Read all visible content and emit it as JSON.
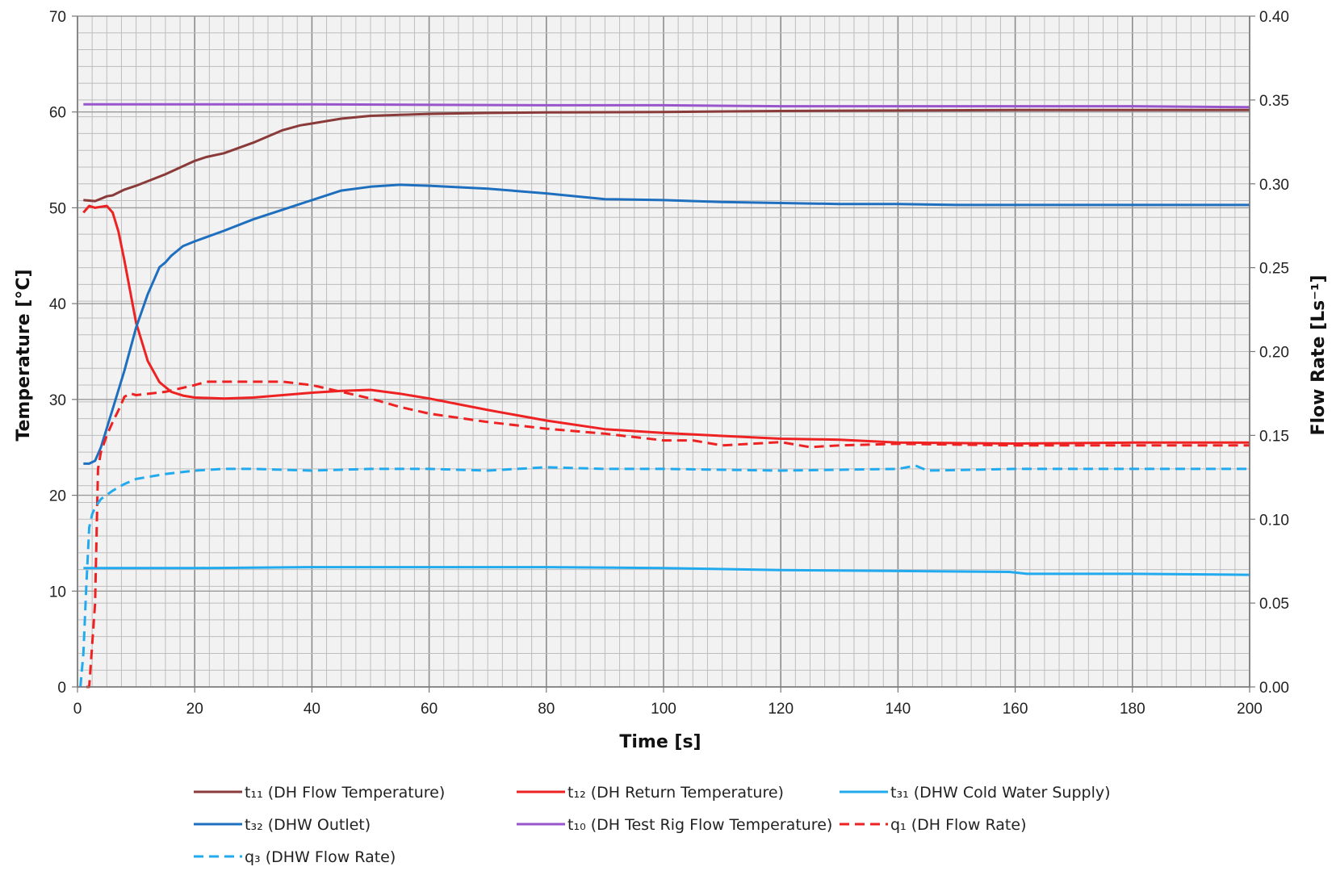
{
  "chart_data": {
    "type": "line",
    "xlabel": "Time [s]",
    "ylabel_left": "Temperature [°C]",
    "ylabel_right": "Flow Rate [Ls⁻¹]",
    "xlim": [
      0,
      200
    ],
    "ylim_left": [
      0,
      70
    ],
    "ylim_right": [
      0,
      0.4
    ],
    "x_ticks": [
      "0",
      "20",
      "40",
      "60",
      "80",
      "100",
      "120",
      "140",
      "160",
      "180",
      "200"
    ],
    "y_left_ticks": [
      "0",
      "10",
      "20",
      "30",
      "40",
      "50",
      "60",
      "70"
    ],
    "y_right_ticks": [
      "0.00",
      "0.05",
      "0.10",
      "0.15",
      "0.20",
      "0.25",
      "0.30",
      "0.35",
      "0.40"
    ],
    "grid": true,
    "plot_background": "#f2f2f2",
    "legend_position": "bottom",
    "series": [
      {
        "name": "t₁₁ (DH Flow Temperature)",
        "axis": "left",
        "color": "#8b3a3a",
        "dash": "solid",
        "x": [
          1,
          3,
          5,
          6,
          8,
          10,
          15,
          20,
          22,
          25,
          30,
          35,
          38,
          40,
          45,
          50,
          55,
          60,
          70,
          80,
          100,
          120,
          140,
          160,
          180,
          200
        ],
        "y": [
          50.8,
          50.7,
          51.2,
          51.3,
          51.9,
          52.3,
          53.5,
          54.9,
          55.3,
          55.7,
          56.8,
          58.1,
          58.6,
          58.8,
          59.3,
          59.6,
          59.7,
          59.8,
          59.9,
          59.95,
          60.0,
          60.1,
          60.15,
          60.2,
          60.2,
          60.2
        ]
      },
      {
        "name": "t₁₂ (DH Return Temperature)",
        "axis": "left",
        "color": "#ee2222",
        "dash": "solid",
        "x": [
          1,
          2,
          3,
          4,
          5,
          6,
          7,
          8,
          10,
          12,
          14,
          16,
          18,
          20,
          25,
          30,
          40,
          45,
          50,
          55,
          60,
          70,
          80,
          90,
          100,
          110,
          120,
          130,
          140,
          160,
          180,
          200
        ],
        "y": [
          49.5,
          50.2,
          50.0,
          50.1,
          50.2,
          49.5,
          47.5,
          44.5,
          38.0,
          34.0,
          31.8,
          30.8,
          30.4,
          30.2,
          30.1,
          30.2,
          30.7,
          30.9,
          31.0,
          30.6,
          30.1,
          28.9,
          27.8,
          26.9,
          26.5,
          26.2,
          25.9,
          25.8,
          25.5,
          25.4,
          25.5,
          25.5
        ]
      },
      {
        "name": "t₃₁ (DHW Cold Water Supply)",
        "axis": "left",
        "color": "#22aaee",
        "dash": "solid",
        "x": [
          1,
          20,
          40,
          60,
          80,
          100,
          120,
          140,
          159,
          162,
          180,
          200
        ],
        "y": [
          12.4,
          12.4,
          12.5,
          12.5,
          12.5,
          12.4,
          12.2,
          12.1,
          12.0,
          11.8,
          11.8,
          11.7
        ]
      },
      {
        "name": "t₃₂ (DHW Outlet)",
        "axis": "left",
        "color": "#1f6fbf",
        "dash": "solid",
        "x": [
          1,
          2,
          3,
          4,
          6,
          8,
          10,
          12,
          14,
          15,
          16,
          18,
          20,
          25,
          30,
          32,
          35,
          40,
          45,
          50,
          55,
          60,
          70,
          80,
          90,
          100,
          110,
          120,
          130,
          140,
          150,
          160,
          180,
          200
        ],
        "y": [
          23.3,
          23.3,
          23.6,
          25.0,
          29.0,
          33.0,
          37.5,
          41.0,
          43.8,
          44.3,
          45.0,
          46.0,
          46.5,
          47.6,
          48.8,
          49.2,
          49.8,
          50.8,
          51.8,
          52.2,
          52.4,
          52.3,
          52.0,
          51.5,
          50.9,
          50.8,
          50.6,
          50.5,
          50.4,
          50.4,
          50.3,
          50.3,
          50.3,
          50.3
        ]
      },
      {
        "name": "t₁₀ (DH Test Rig Flow Temperature)",
        "axis": "left",
        "color": "#9955cc",
        "dash": "solid",
        "x": [
          1,
          40,
          80,
          100,
          120,
          160,
          180,
          200
        ],
        "y": [
          60.8,
          60.8,
          60.7,
          60.7,
          60.6,
          60.6,
          60.6,
          60.5
        ]
      },
      {
        "name": "q₁ (DH Flow Rate)",
        "axis": "right",
        "color": "#ee2222",
        "dash": "dashed",
        "x": [
          1.5,
          2,
          3,
          3.5,
          4,
          5,
          6,
          7,
          8,
          9,
          10,
          15,
          20,
          22,
          25,
          30,
          35,
          40,
          45,
          50,
          55,
          60,
          70,
          80,
          90,
          100,
          105,
          110,
          120,
          125,
          130,
          140,
          160,
          180,
          200
        ],
        "y": [
          0.0,
          0.0,
          0.05,
          0.13,
          0.14,
          0.15,
          0.158,
          0.165,
          0.173,
          0.175,
          0.174,
          0.176,
          0.18,
          0.182,
          0.182,
          0.182,
          0.182,
          0.18,
          0.176,
          0.172,
          0.167,
          0.163,
          0.158,
          0.154,
          0.151,
          0.147,
          0.147,
          0.144,
          0.146,
          0.143,
          0.144,
          0.145,
          0.144,
          0.144,
          0.144
        ]
      },
      {
        "name": "q₃ (DHW Flow Rate)",
        "axis": "right",
        "color": "#22aaee",
        "dash": "dashed",
        "x": [
          0.5,
          1,
          1.5,
          2,
          2.5,
          3,
          4,
          6,
          8,
          10,
          15,
          20,
          25,
          30,
          40,
          50,
          60,
          70,
          80,
          90,
          100,
          120,
          140,
          143,
          145,
          160,
          180,
          200
        ],
        "y": [
          0.0,
          0.02,
          0.06,
          0.095,
          0.103,
          0.107,
          0.112,
          0.117,
          0.121,
          0.124,
          0.127,
          0.129,
          0.13,
          0.13,
          0.129,
          0.13,
          0.13,
          0.129,
          0.131,
          0.13,
          0.13,
          0.129,
          0.13,
          0.132,
          0.129,
          0.13,
          0.13,
          0.13
        ]
      }
    ]
  }
}
